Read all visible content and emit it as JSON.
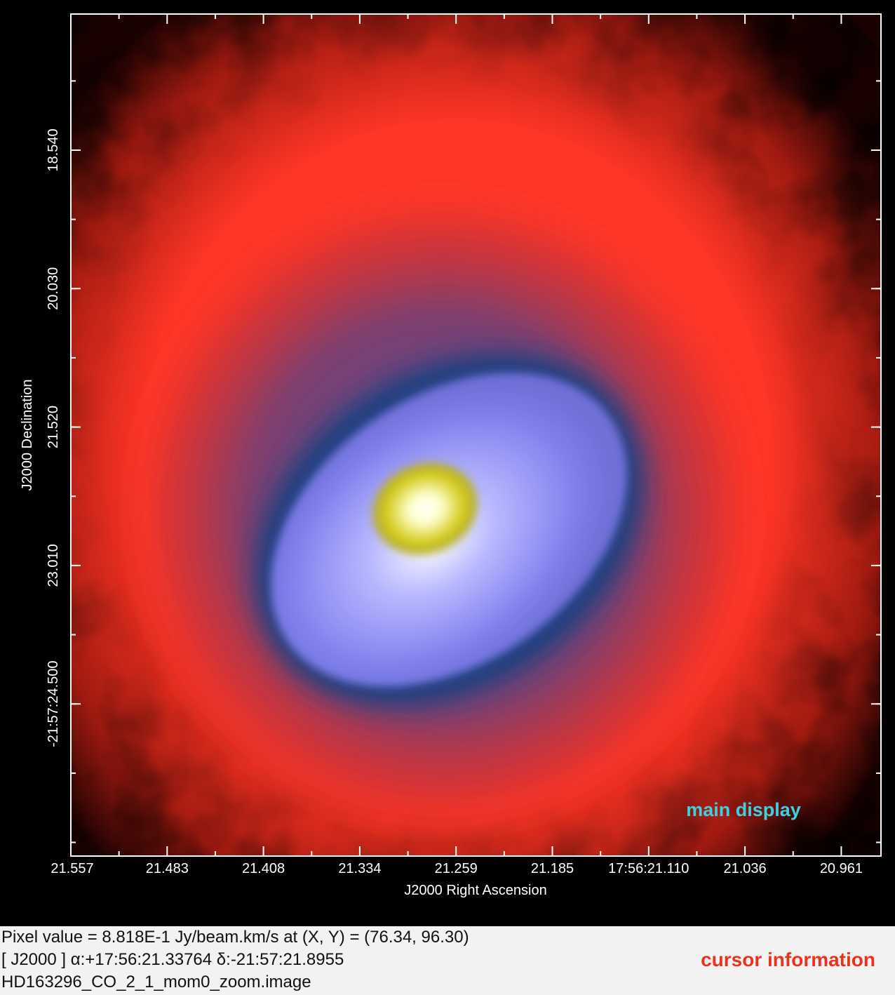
{
  "display": {
    "x_tick_labels": [
      "21.557",
      "21.483",
      "21.408",
      "21.334",
      "21.259",
      "21.185",
      "17:56:21.110",
      "21.036",
      "20.961"
    ],
    "y_tick_labels": [
      "18.540",
      "20.030",
      "21.520",
      "23.010",
      "-21:57:24.500"
    ],
    "x_axis_title": "J2000 Right Ascension",
    "y_axis_title": "J2000 Declination",
    "annotation": "main display"
  },
  "cursor_panel": {
    "lines": [
      "Pixel value = 8.818E-1 Jy/beam.km/s at (X, Y) = (76.34, 96.30)",
      "[ J2000 ] α:+17:56:21.33764 δ:-21:57:21.8955",
      "HD163296_CO_2_1_mom0_zoom.image"
    ],
    "annotation": "cursor information"
  }
}
